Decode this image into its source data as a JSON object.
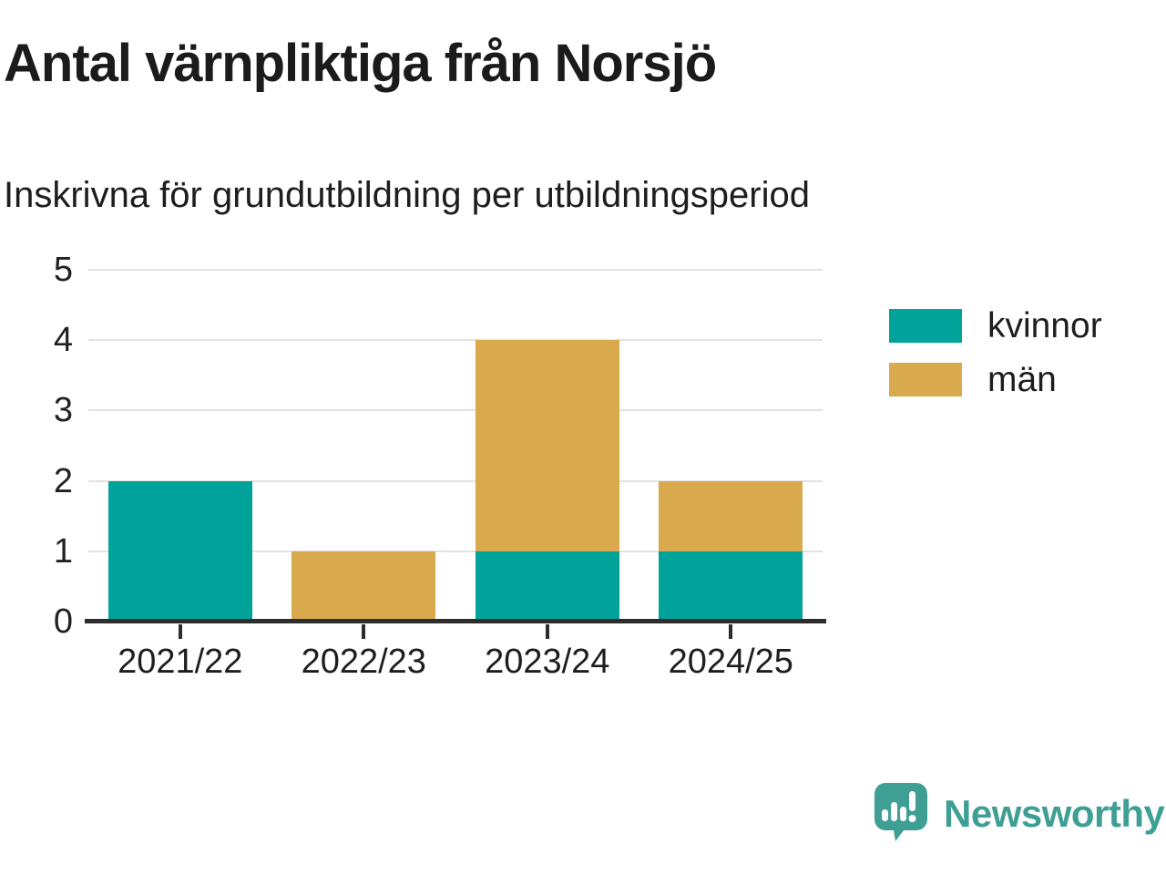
{
  "header": {
    "title": "Antal värnpliktiga från Norsjö",
    "subtitle": "Inskrivna för grundutbildning per utbildningsperiod"
  },
  "chart_data": {
    "type": "bar",
    "stacked": true,
    "categories": [
      "2021/22",
      "2022/23",
      "2023/24",
      "2024/25"
    ],
    "series": [
      {
        "name": "kvinnor",
        "color": "#00a29a",
        "values": [
          2,
          0,
          1,
          1
        ]
      },
      {
        "name": "män",
        "color": "#d9a94e",
        "values": [
          0,
          1,
          3,
          1
        ]
      }
    ],
    "totals": [
      2,
      1,
      4,
      2
    ],
    "title": "Antal värnpliktiga från Norsjö",
    "subtitle": "Inskrivna för grundutbildning per utbildningsperiod",
    "xlabel": "",
    "ylabel": "",
    "ylim": [
      0,
      5
    ],
    "yticks": [
      0,
      1,
      2,
      3,
      4,
      5
    ],
    "grid": true,
    "legend_position": "right"
  },
  "legend": {
    "items": [
      {
        "label": "kvinnor",
        "color": "#00a29a"
      },
      {
        "label": "män",
        "color": "#d9a94e"
      }
    ]
  },
  "branding": {
    "logo_text": "Newsworthy",
    "logo_icon": "speech-bubble-bar-chart-icon",
    "logo_color": "#3f9f95"
  },
  "colors": {
    "bar_teal": "#00a29a",
    "bar_gold": "#d9a94e",
    "axis": "#2d2d2d",
    "gridline": "#e2e2e2",
    "text": "#1b1b1b",
    "background": "#ffffff"
  }
}
